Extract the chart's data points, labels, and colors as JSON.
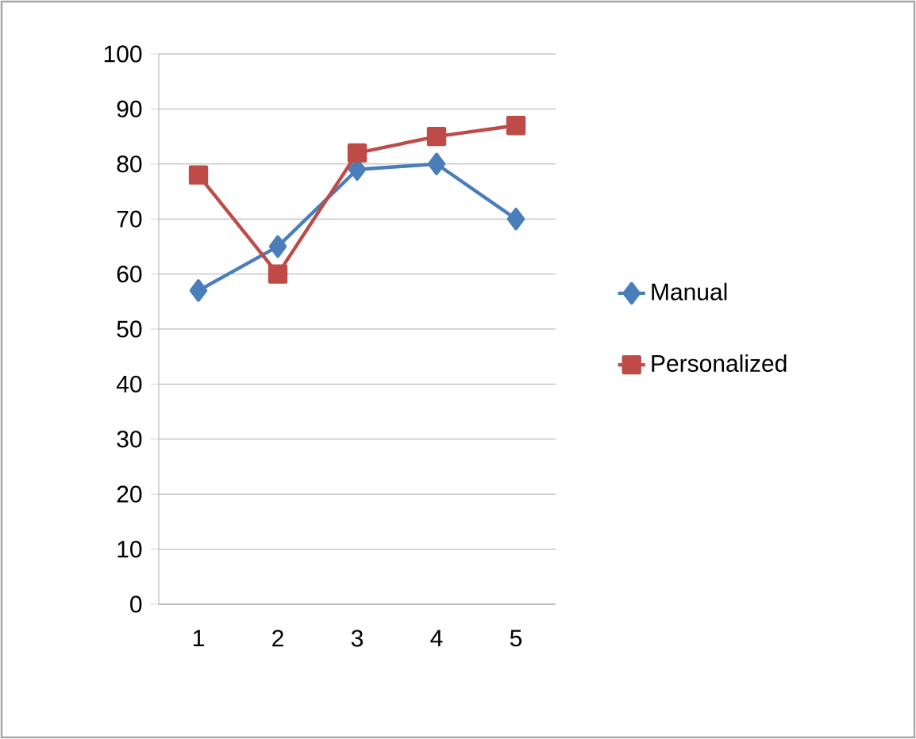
{
  "chart_data": {
    "type": "line",
    "categories": [
      "1",
      "2",
      "3",
      "4",
      "5"
    ],
    "series": [
      {
        "name": "Manual",
        "color": "#4a7ebb",
        "marker": "diamond",
        "values": [
          57,
          65,
          79,
          80,
          70
        ]
      },
      {
        "name": "Personalized",
        "color": "#be4b48",
        "marker": "square",
        "values": [
          78,
          60,
          82,
          85,
          87
        ]
      }
    ],
    "ylim": [
      0,
      100
    ],
    "yticks": [
      0,
      10,
      20,
      30,
      40,
      50,
      60,
      70,
      80,
      90,
      100
    ],
    "grid": "y",
    "legend": "right"
  }
}
